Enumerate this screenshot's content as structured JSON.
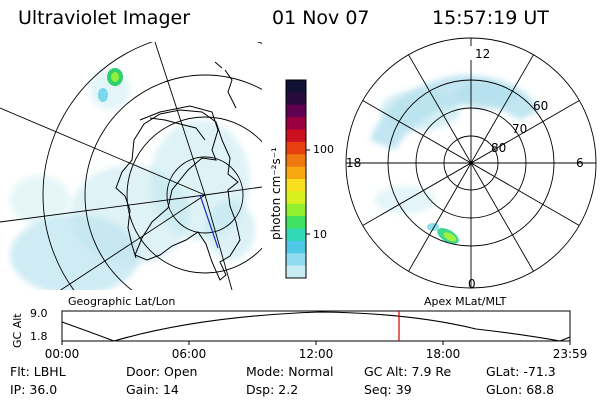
{
  "header": {
    "instrument": "Ultraviolet Imager",
    "date": "01 Nov 07",
    "time": "15:57:19 UT"
  },
  "colorbar": {
    "unit_label": "photon cm⁻²s⁻¹",
    "ticks": [
      "100",
      "10"
    ],
    "colors": [
      "#111133",
      "#2a0a3a",
      "#600050",
      "#9a0040",
      "#cc1020",
      "#e84010",
      "#f07810",
      "#f8a810",
      "#f8e020",
      "#d8f020",
      "#90f030",
      "#40e060",
      "#30d8b8",
      "#50c8e8",
      "#90dcee",
      "#c8ecf4"
    ]
  },
  "left_map": {
    "label": "Geographic Lat/Lon"
  },
  "right_map": {
    "label": "Apex MLat/MLT",
    "mlt_labels": {
      "top": "12",
      "left": "18",
      "right": "6",
      "bottom": "0"
    },
    "mlat_labels": [
      "60",
      "70",
      "80"
    ]
  },
  "altitude_plot": {
    "ylabel": "GC Alt",
    "ytick_top": "9.0",
    "ytick_bottom": "1.8",
    "xticks": [
      "00:00",
      "06:00",
      "12:00",
      "18:00",
      "23:59"
    ],
    "current_time_marker_color": "#cc0000"
  },
  "parameters": {
    "row1": [
      {
        "label": "Flt:",
        "value": "LBHL"
      },
      {
        "label": "Door:",
        "value": "Open"
      },
      {
        "label": "Mode:",
        "value": "Normal"
      },
      {
        "label": "GC Alt:",
        "value": "7.9 Re"
      },
      {
        "label": "GLat:",
        "value": "-71.3"
      }
    ],
    "row2": [
      {
        "label": "IP:",
        "value": "36.0"
      },
      {
        "label": "Gain:",
        "value": "14"
      },
      {
        "label": "Dsp:",
        "value": "2.2"
      },
      {
        "label": "Seq:",
        "value": "39"
      },
      {
        "label": "GLon:",
        "value": "68.8"
      }
    ]
  }
}
